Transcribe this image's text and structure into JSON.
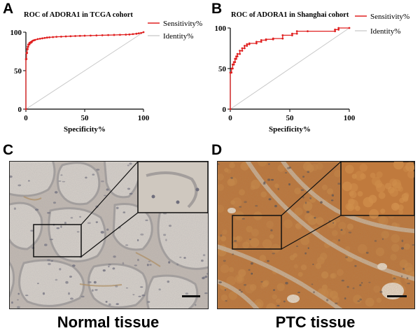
{
  "panels": {
    "a": "A",
    "b": "B",
    "c": "C",
    "d": "D"
  },
  "chart_data": [
    {
      "type": "line",
      "title": "ROC of ADORA1 in TCGA cohort",
      "xlabel": "Specificity%",
      "ylabel": "",
      "xlim": [
        0,
        100
      ],
      "ylim": [
        0,
        100
      ],
      "xticks": [
        "0",
        "50",
        "100"
      ],
      "yticks": [
        "0",
        "50",
        "100"
      ],
      "legend_position": "top-right",
      "legend": [
        "Sensitivity%",
        "Identity%"
      ],
      "series": [
        {
          "name": "Sensitivity%",
          "color": "#e02020",
          "x": [
            0,
            0,
            0.5,
            0.5,
            1,
            1,
            1.5,
            1.5,
            2,
            2,
            3,
            3,
            4,
            4,
            5,
            5,
            6,
            7,
            8,
            10,
            12,
            14,
            16,
            18,
            20,
            23,
            26,
            30,
            34,
            38,
            42,
            46,
            50,
            55,
            60,
            65,
            70,
            75,
            80,
            85,
            88,
            91,
            94,
            96,
            98,
            100
          ],
          "y": [
            0,
            65,
            65,
            73,
            73,
            78,
            78,
            81,
            81,
            84,
            84,
            86,
            86,
            87,
            87,
            88,
            89,
            89.5,
            90,
            91,
            91.5,
            92,
            92.5,
            93,
            93.3,
            93.6,
            94,
            94.2,
            94.5,
            94.8,
            95,
            95.2,
            95.4,
            95.6,
            95.8,
            96,
            96.2,
            96.4,
            96.6,
            96.8,
            97,
            97.5,
            98,
            98.5,
            99,
            100
          ]
        },
        {
          "name": "Identity%",
          "color": "#c8c8c8",
          "x": [
            0,
            100
          ],
          "y": [
            0,
            100
          ]
        }
      ]
    },
    {
      "type": "line",
      "title": "ROC of ADORA1 in Shanghai cohort",
      "xlabel": "Specificity%",
      "ylabel": "",
      "xlim": [
        0,
        100
      ],
      "ylim": [
        0,
        100
      ],
      "xticks": [
        "0",
        "50",
        "100"
      ],
      "yticks": [
        "0",
        "50",
        "100"
      ],
      "legend_position": "top-right",
      "legend": [
        "Sensitivity%",
        "Identity%"
      ],
      "series": [
        {
          "name": "Sensitivity%",
          "color": "#e02020",
          "x": [
            0,
            0,
            1,
            1,
            2,
            2,
            3,
            3,
            4,
            4,
            5,
            5,
            6,
            6,
            8,
            8,
            10,
            10,
            12,
            12,
            14,
            14,
            16,
            16,
            22,
            22,
            26,
            26,
            30,
            30,
            36,
            36,
            44,
            44,
            52,
            52,
            56,
            56,
            65,
            88,
            88,
            91,
            91,
            100
          ],
          "y": [
            0,
            45,
            45,
            50,
            50,
            55,
            55,
            58,
            58,
            62,
            62,
            65,
            65,
            68,
            68,
            72,
            72,
            75,
            75,
            78,
            78,
            80,
            80,
            81,
            81,
            83,
            83,
            85,
            85,
            86,
            86,
            87,
            87,
            91,
            91,
            93,
            93,
            96,
            96,
            96,
            98,
            98,
            100,
            100
          ]
        },
        {
          "name": "Identity%",
          "color": "#c8c8c8",
          "x": [
            0,
            100
          ],
          "y": [
            0,
            100
          ]
        }
      ]
    }
  ],
  "micrographs": {
    "normal_label": "Normal tissue",
    "ptc_label": "PTC tissue",
    "normal_colors": {
      "background": "#c3bab2",
      "colloid": "#d7d1ca",
      "stroma": "#a39e9c",
      "nuclei": "#6f6e7c",
      "stain": "#b08a55"
    },
    "ptc_colors": {
      "background": "#b9733a",
      "cell": "#c88746",
      "stroma": "#c8b9a8",
      "nuclei": "#4e4a52",
      "lumen": "#e6ddd2"
    }
  }
}
